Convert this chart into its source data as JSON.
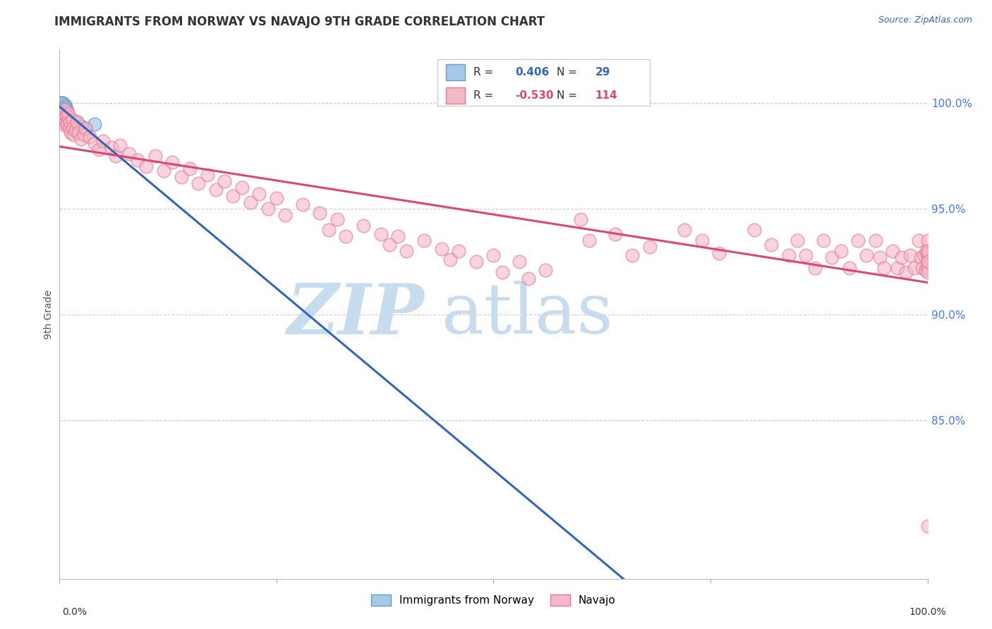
{
  "title": "IMMIGRANTS FROM NORWAY VS NAVAJO 9TH GRADE CORRELATION CHART",
  "source": "Source: ZipAtlas.com",
  "ylabel": "9th Grade",
  "yaxis_labels": [
    "100.0%",
    "95.0%",
    "90.0%",
    "85.0%"
  ],
  "yaxis_values": [
    1.0,
    0.95,
    0.9,
    0.85
  ],
  "legend_blue_r_val": "0.406",
  "legend_blue_n_val": "29",
  "legend_pink_r_val": "-0.530",
  "legend_pink_n_val": "114",
  "legend_label_blue": "Immigrants from Norway",
  "legend_label_pink": "Navajo",
  "xlim": [
    0.0,
    1.0
  ],
  "ylim": [
    0.775,
    1.025
  ],
  "blue_color": "#A8C8E8",
  "pink_color": "#F5B8C8",
  "blue_edge_color": "#6699CC",
  "pink_edge_color": "#E87890",
  "blue_line_color": "#3366BB",
  "pink_line_color": "#DD4477",
  "r_n_color": "#3366BB",
  "pink_r_n_color": "#DD4477",
  "grid_color": "#CCCCCC",
  "title_color": "#333333",
  "source_color": "#3366BB",
  "ylabel_color": "#555555",
  "right_label_color": "#4477EE",
  "watermark_color": "#C8DCF0",
  "blue_scatter_x": [
    0.001,
    0.002,
    0.002,
    0.003,
    0.003,
    0.003,
    0.004,
    0.004,
    0.004,
    0.005,
    0.005,
    0.006,
    0.006,
    0.006,
    0.007,
    0.007,
    0.008,
    0.008,
    0.009,
    0.009,
    0.01,
    0.011,
    0.012,
    0.015,
    0.018,
    0.02,
    0.025,
    0.03,
    0.04
  ],
  "blue_scatter_y": [
    0.998,
    0.999,
    1.0,
    0.997,
    0.999,
    1.0,
    0.997,
    0.998,
    1.0,
    0.996,
    0.998,
    0.995,
    0.997,
    0.999,
    0.995,
    0.998,
    0.994,
    0.997,
    0.993,
    0.996,
    0.992,
    0.991,
    0.99,
    0.989,
    0.99,
    0.991,
    0.989,
    0.988,
    0.99
  ],
  "pink_scatter_x": [
    0.001,
    0.002,
    0.003,
    0.004,
    0.005,
    0.005,
    0.006,
    0.007,
    0.008,
    0.009,
    0.01,
    0.01,
    0.011,
    0.012,
    0.013,
    0.015,
    0.015,
    0.016,
    0.018,
    0.02,
    0.022,
    0.025,
    0.028,
    0.03,
    0.035,
    0.04,
    0.045,
    0.05,
    0.06,
    0.065,
    0.07,
    0.08,
    0.09,
    0.1,
    0.11,
    0.12,
    0.13,
    0.14,
    0.15,
    0.16,
    0.17,
    0.18,
    0.19,
    0.2,
    0.21,
    0.22,
    0.23,
    0.24,
    0.25,
    0.26,
    0.28,
    0.3,
    0.31,
    0.32,
    0.33,
    0.35,
    0.37,
    0.38,
    0.39,
    0.4,
    0.42,
    0.44,
    0.45,
    0.46,
    0.48,
    0.5,
    0.51,
    0.53,
    0.54,
    0.56,
    0.6,
    0.61,
    0.64,
    0.66,
    0.68,
    0.72,
    0.74,
    0.76,
    0.8,
    0.82,
    0.84,
    0.85,
    0.86,
    0.87,
    0.88,
    0.89,
    0.9,
    0.91,
    0.92,
    0.93,
    0.94,
    0.945,
    0.95,
    0.96,
    0.965,
    0.97,
    0.975,
    0.98,
    0.985,
    0.99,
    0.992,
    0.994,
    0.996,
    0.998,
    0.999,
    1.0,
    1.0,
    1.0,
    1.0,
    1.0,
    1.0,
    1.0,
    1.0,
    1.0
  ],
  "pink_scatter_y": [
    0.992,
    0.993,
    0.991,
    0.99,
    0.995,
    0.997,
    0.993,
    0.991,
    0.994,
    0.99,
    0.993,
    0.995,
    0.988,
    0.991,
    0.986,
    0.992,
    0.988,
    0.985,
    0.987,
    0.991,
    0.986,
    0.983,
    0.985,
    0.988,
    0.984,
    0.981,
    0.978,
    0.982,
    0.979,
    0.975,
    0.98,
    0.976,
    0.973,
    0.97,
    0.975,
    0.968,
    0.972,
    0.965,
    0.969,
    0.962,
    0.966,
    0.959,
    0.963,
    0.956,
    0.96,
    0.953,
    0.957,
    0.95,
    0.955,
    0.947,
    0.952,
    0.948,
    0.94,
    0.945,
    0.937,
    0.942,
    0.938,
    0.933,
    0.937,
    0.93,
    0.935,
    0.931,
    0.926,
    0.93,
    0.925,
    0.928,
    0.92,
    0.925,
    0.917,
    0.921,
    0.945,
    0.935,
    0.938,
    0.928,
    0.932,
    0.94,
    0.935,
    0.929,
    0.94,
    0.933,
    0.928,
    0.935,
    0.928,
    0.922,
    0.935,
    0.927,
    0.93,
    0.922,
    0.935,
    0.928,
    0.935,
    0.927,
    0.922,
    0.93,
    0.922,
    0.927,
    0.92,
    0.928,
    0.922,
    0.935,
    0.927,
    0.922,
    0.928,
    0.921,
    0.93,
    0.928,
    0.935,
    0.922,
    0.929,
    0.925,
    0.92,
    0.93,
    0.925,
    0.8
  ]
}
